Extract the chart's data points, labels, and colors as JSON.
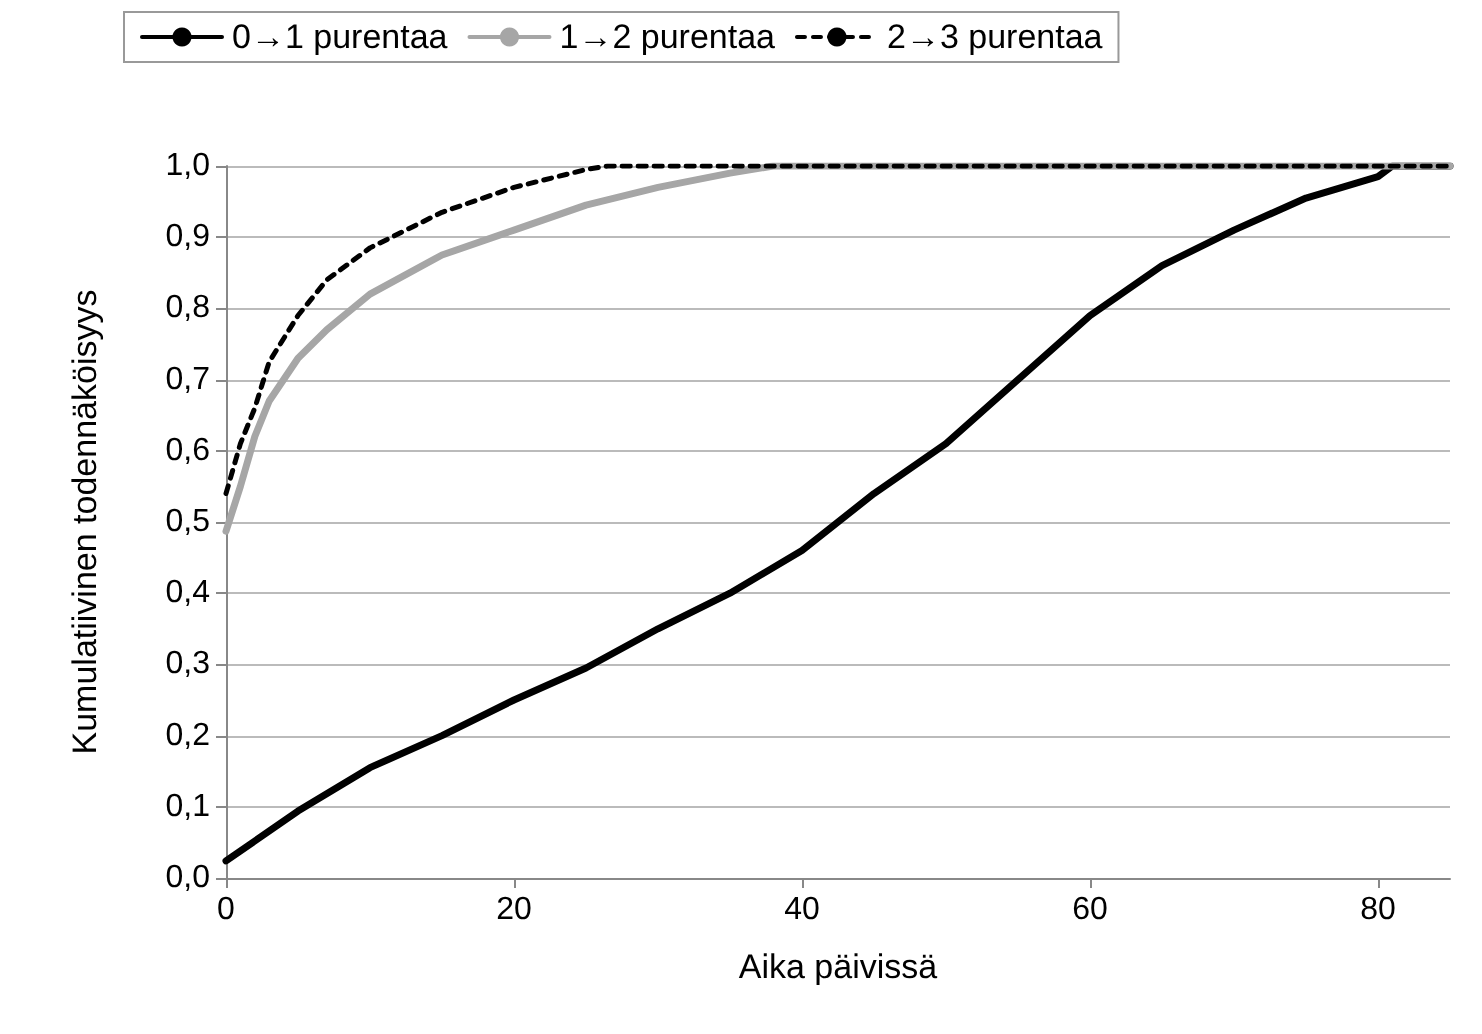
{
  "chart_data": {
    "type": "line",
    "xlabel": "Aika päivissä",
    "ylabel": "Kumulatiivinen todennäköisyys",
    "xlim": [
      0,
      85
    ],
    "xticks": [
      0,
      20,
      40,
      60,
      80
    ],
    "ylim": [
      0,
      1
    ],
    "yticks": [
      {
        "value": 0,
        "label": "0,0"
      },
      {
        "value": 0.1,
        "label": "0,1"
      },
      {
        "value": 0.2,
        "label": "0,2"
      },
      {
        "value": 0.3,
        "label": "0,3"
      },
      {
        "value": 0.4,
        "label": "0,4"
      },
      {
        "value": 0.5,
        "label": "0,5"
      },
      {
        "value": 0.6,
        "label": "0,6"
      },
      {
        "value": 0.7,
        "label": "0,7"
      },
      {
        "value": 0.8,
        "label": "0,8"
      },
      {
        "value": 0.9,
        "label": "0,9"
      },
      {
        "value": 1,
        "label": "1,0"
      }
    ],
    "grid": "y",
    "legend": "top",
    "marker": "none",
    "series": [
      {
        "name": "0→1 purentaa",
        "color": "#000000",
        "line_style": "solid",
        "x": [
          0,
          5,
          10,
          15,
          20,
          25,
          30,
          35,
          40,
          45,
          50,
          55,
          60,
          65,
          70,
          75,
          80,
          81,
          85
        ],
        "values": [
          0.024,
          0.094,
          0.155,
          0.2,
          0.25,
          0.295,
          0.35,
          0.4,
          0.46,
          0.54,
          0.61,
          0.7,
          0.79,
          0.86,
          0.91,
          0.955,
          0.985,
          1,
          1
        ]
      },
      {
        "name": "1→2 purentaa",
        "color": "#a6a6a6",
        "line_style": "solid",
        "x": [
          0,
          1,
          2,
          3,
          5,
          7,
          10,
          15,
          20,
          25,
          30,
          35,
          38,
          85
        ],
        "values": [
          0.487,
          0.55,
          0.62,
          0.67,
          0.73,
          0.77,
          0.82,
          0.875,
          0.91,
          0.945,
          0.97,
          0.99,
          1,
          1
        ]
      },
      {
        "name": "2→3 purentaa",
        "color": "#000000",
        "line_style": "dashed",
        "x": [
          0,
          1,
          2,
          3,
          5,
          7,
          10,
          15,
          20,
          25,
          26.5,
          85
        ],
        "values": [
          0.54,
          0.61,
          0.66,
          0.725,
          0.79,
          0.84,
          0.885,
          0.935,
          0.97,
          0.995,
          1,
          1
        ]
      }
    ]
  }
}
